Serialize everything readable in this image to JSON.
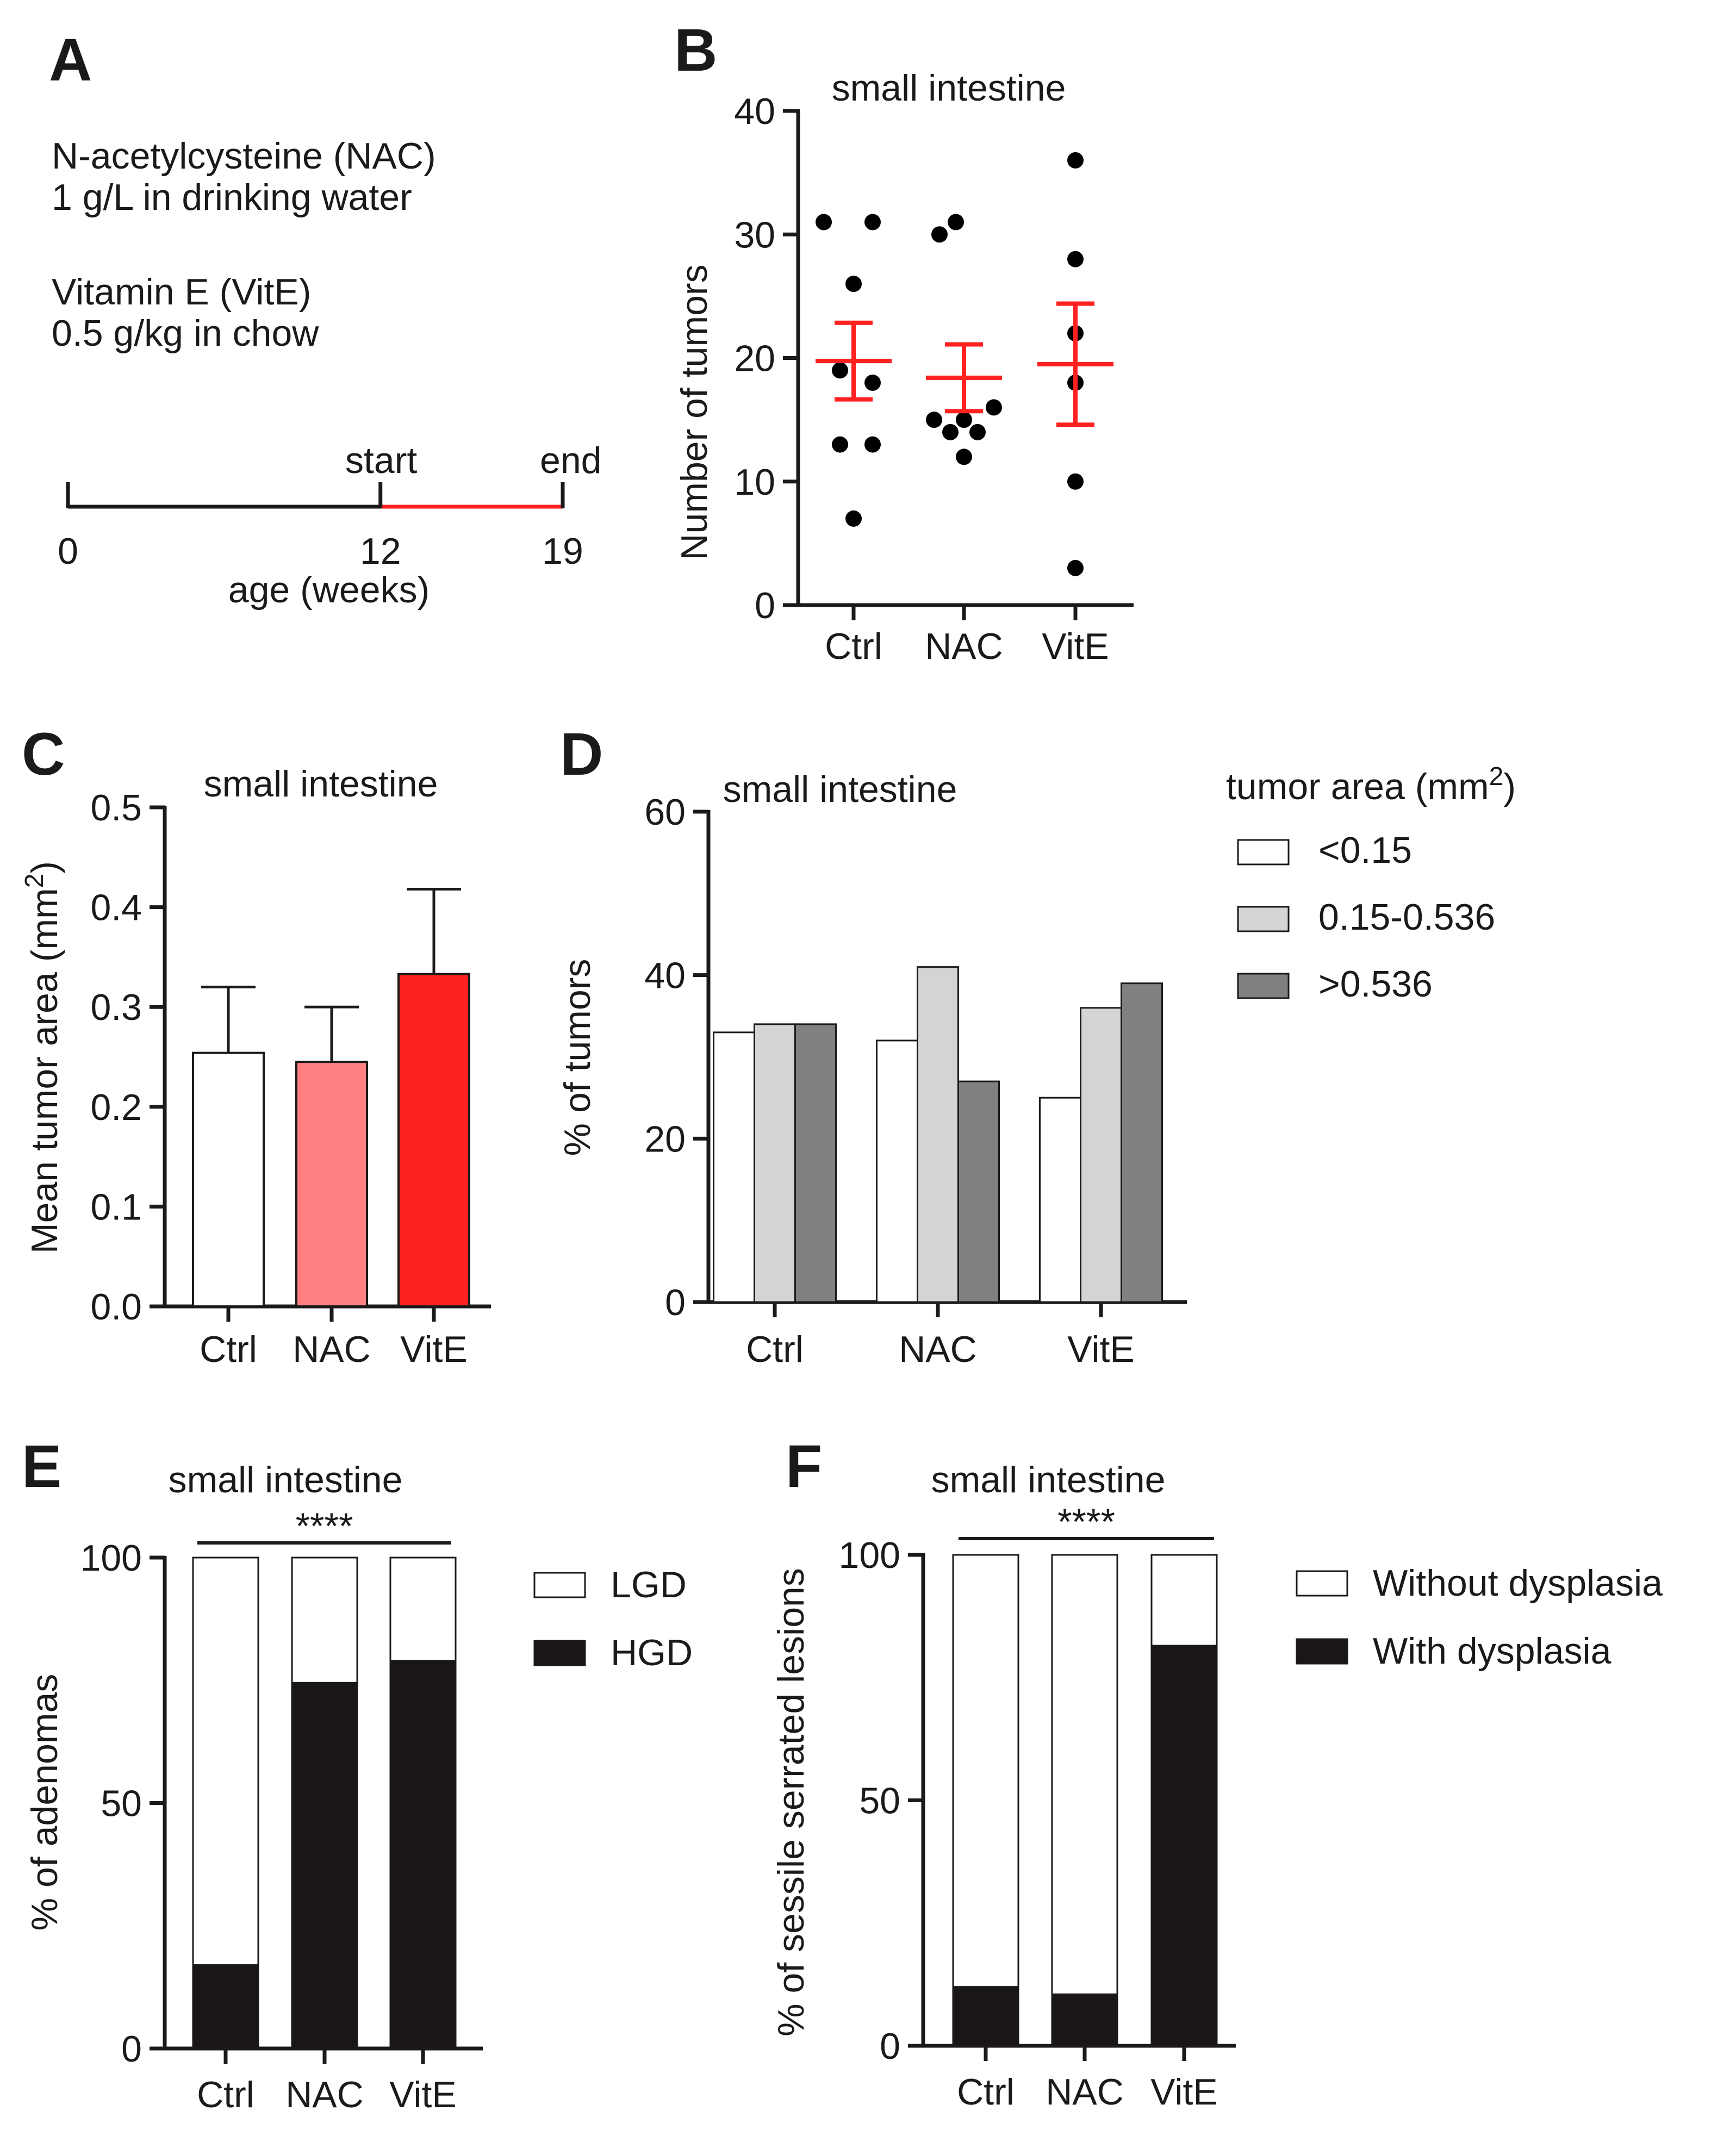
{
  "panels": {
    "A": {
      "label": "A",
      "lines": [
        "N-acetylcysteine (NAC)",
        "1 g/L in drinking water",
        "Vitamin E (VitE)",
        "0.5 g/kg in chow"
      ],
      "timeline": {
        "start_label": "start",
        "end_label": "end",
        "ticks": [
          "0",
          "12",
          "19"
        ],
        "tick_values": [
          0,
          12,
          19
        ],
        "treatment_range": [
          12,
          19
        ],
        "xlabel": "age (weeks)",
        "colors": {
          "axis": "#1a1a1a",
          "treatment": "#ff2020"
        }
      }
    },
    "B": {
      "label": "B"
    },
    "C": {
      "label": "C"
    },
    "D": {
      "label": "D"
    },
    "E": {
      "label": "E"
    },
    "F": {
      "label": "F"
    }
  },
  "chart_data": [
    {
      "id": "B",
      "type": "scatter",
      "title": "small intestine",
      "xlabel": "",
      "ylabel": "Number of tumors",
      "categories": [
        "Ctrl",
        "NAC",
        "VitE"
      ],
      "ylim": [
        0,
        40
      ],
      "yticks": [
        0,
        10,
        20,
        30,
        40
      ],
      "points": [
        [
          31,
          31,
          26,
          19,
          18,
          13,
          13,
          7
        ],
        [
          31,
          30,
          16,
          15,
          15,
          14,
          14,
          12
        ],
        [
          36,
          28,
          22,
          18,
          10,
          3
        ]
      ],
      "mean": [
        19.75,
        18.4,
        19.5
      ],
      "sem": [
        3.1,
        2.7,
        4.9
      ],
      "colors": {
        "points": "#000000",
        "mean": "#ff2020"
      }
    },
    {
      "id": "C",
      "type": "bar",
      "title": "small intestine",
      "xlabel": "",
      "ylabel": "Mean tumor area (mm",
      "ylabel_superscript": "2",
      "ylabel_suffix": ")",
      "categories": [
        "Ctrl",
        "NAC",
        "VitE"
      ],
      "values": [
        0.254,
        0.245,
        0.333
      ],
      "errors": [
        0.066,
        0.055,
        0.085
      ],
      "ylim": [
        0,
        0.5
      ],
      "yticks": [
        "0.0",
        "0.1",
        "0.2",
        "0.3",
        "0.4",
        "0.5"
      ],
      "ytick_values": [
        0,
        0.1,
        0.2,
        0.3,
        0.4,
        0.5
      ],
      "colors": [
        "#ffffff",
        "#ff8080",
        "#ff2020"
      ]
    },
    {
      "id": "D",
      "type": "bar",
      "title": "small intestine",
      "xlabel": "",
      "ylabel": "% of tumors",
      "categories": [
        "Ctrl",
        "NAC",
        "VitE"
      ],
      "legend_title": "tumor area (mm",
      "legend_title_superscript": "2",
      "legend_title_suffix": ")",
      "series": [
        {
          "name": "<0.15",
          "values": [
            33,
            32,
            25
          ],
          "color": "#ffffff"
        },
        {
          "name": "0.15-0.536",
          "values": [
            34,
            41,
            36
          ],
          "color": "#d4d4d4"
        },
        {
          "name": ">0.536",
          "values": [
            34,
            27,
            39
          ],
          "color": "#808080"
        }
      ],
      "ylim": [
        0,
        60
      ],
      "yticks": [
        0,
        20,
        40,
        60
      ],
      "legend": "right"
    },
    {
      "id": "E",
      "type": "bar",
      "stacked": true,
      "title": "small intestine",
      "significance": "****",
      "xlabel": "",
      "ylabel": "% of adenomas",
      "categories": [
        "Ctrl",
        "NAC",
        "VitE"
      ],
      "series": [
        {
          "name": "HGD",
          "values": [
            17,
            74.5,
            79
          ],
          "color": "#1a1616"
        },
        {
          "name": "LGD",
          "values": [
            83,
            25.5,
            21
          ],
          "color": "#ffffff"
        }
      ],
      "legend_order": [
        "LGD",
        "HGD"
      ],
      "ylim": [
        0,
        100
      ],
      "yticks": [
        0,
        50,
        100
      ],
      "legend": "right"
    },
    {
      "id": "F",
      "type": "bar",
      "stacked": true,
      "title": "small intestine",
      "significance": "****",
      "xlabel": "",
      "ylabel": "% of sessile serrated lesions",
      "categories": [
        "Ctrl",
        "NAC",
        "VitE"
      ],
      "series": [
        {
          "name": "With dysplasia",
          "values": [
            12,
            10.5,
            81.5
          ],
          "color": "#1a1616"
        },
        {
          "name": "Without dysplasia",
          "values": [
            88,
            89.5,
            18.5
          ],
          "color": "#ffffff"
        }
      ],
      "legend_order": [
        "Without dysplasia",
        "With dysplasia"
      ],
      "ylim": [
        0,
        100
      ],
      "yticks": [
        0,
        50,
        100
      ],
      "legend": "right"
    }
  ]
}
